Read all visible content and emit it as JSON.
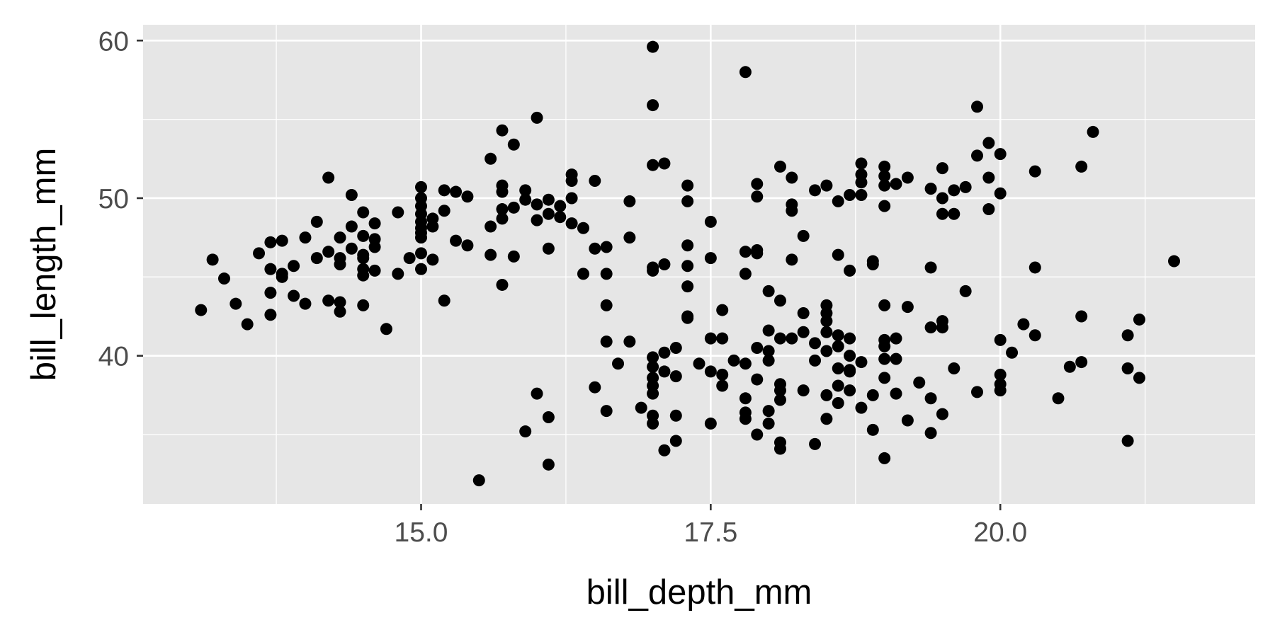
{
  "chart_data": {
    "type": "scatter",
    "title": "",
    "xlabel": "bill_depth_mm",
    "ylabel": "bill_length_mm",
    "xlim": [
      12.6,
      22.2
    ],
    "ylim": [
      30.6,
      61.0
    ],
    "x_ticks": [
      15.0,
      17.5,
      20.0
    ],
    "x_tick_labels": [
      "15.0",
      "17.5",
      "20.0"
    ],
    "x_minor_ticks": [
      13.75,
      16.25,
      18.75,
      21.25
    ],
    "y_ticks": [
      40,
      50,
      60
    ],
    "y_tick_labels": [
      "40",
      "50",
      "60"
    ],
    "y_minor_ticks": [
      35,
      45,
      55
    ],
    "grid": true,
    "legend": "none",
    "colors": {
      "panel": "#e6e6e6",
      "grid": "#ffffff",
      "point": "#000000",
      "tick_label": "#4d4d4d"
    },
    "series": [
      {
        "x": [
          13.1,
          13.2,
          13.3,
          13.4,
          13.5,
          13.6,
          13.7,
          13.7,
          13.7,
          13.7,
          13.8,
          13.8,
          13.8,
          13.9,
          13.9,
          14.0,
          14.0,
          14.1,
          14.1,
          14.2,
          14.2,
          14.2,
          14.3,
          14.3,
          14.3,
          14.3,
          14.3,
          14.4,
          14.4,
          14.4,
          14.5,
          14.5,
          14.5,
          14.5,
          14.5,
          14.5,
          14.5,
          14.6,
          14.6,
          14.6,
          14.6,
          14.7,
          14.8,
          14.8,
          14.9,
          15.0,
          15.0,
          15.0,
          15.0,
          15.0,
          15.0,
          15.0,
          15.0,
          15.0,
          15.0,
          15.1,
          15.1,
          15.1,
          15.2,
          15.2,
          15.2,
          15.3,
          15.3,
          15.4,
          15.4,
          15.5,
          15.6,
          15.6,
          15.6,
          15.7,
          15.7,
          15.7,
          15.7,
          15.7,
          15.7,
          15.8,
          15.8,
          15.8,
          15.9,
          15.9,
          15.9,
          16.0,
          16.0,
          16.0,
          16.0,
          16.1,
          16.1,
          16.1,
          16.1,
          16.1,
          16.2,
          16.2,
          16.3,
          16.3,
          16.3,
          16.3,
          16.4,
          16.4,
          16.5,
          16.5,
          16.5,
          16.6,
          16.6,
          16.6,
          16.6,
          16.6,
          16.7,
          16.8,
          16.8,
          16.8,
          16.9,
          17.0,
          17.0,
          17.0,
          17.0,
          17.0,
          17.0,
          17.0,
          17.0,
          17.0,
          17.0,
          17.0,
          17.0,
          17.1,
          17.1,
          17.1,
          17.1,
          17.1,
          17.2,
          17.2,
          17.2,
          17.2,
          17.3,
          17.3,
          17.3,
          17.3,
          17.3,
          17.3,
          17.3,
          17.4,
          17.5,
          17.5,
          17.5,
          17.5,
          17.5,
          17.6,
          17.6,
          17.6,
          17.6,
          17.7,
          17.8,
          17.8,
          17.8,
          17.8,
          17.8,
          17.8,
          17.8,
          17.9,
          17.9,
          17.9,
          17.9,
          17.9,
          17.9,
          17.9,
          18.0,
          18.0,
          18.0,
          18.0,
          18.0,
          18.0,
          18.1,
          18.1,
          18.1,
          18.1,
          18.1,
          18.1,
          18.1,
          18.1,
          18.2,
          18.2,
          18.2,
          18.2,
          18.2,
          18.3,
          18.3,
          18.3,
          18.3,
          18.4,
          18.4,
          18.4,
          18.4,
          18.5,
          18.5,
          18.5,
          18.5,
          18.5,
          18.5,
          18.5,
          18.5,
          18.6,
          18.6,
          18.6,
          18.6,
          18.6,
          18.6,
          18.6,
          18.7,
          18.7,
          18.7,
          18.7,
          18.7,
          18.7,
          18.7,
          18.8,
          18.8,
          18.8,
          18.8,
          18.8,
          18.8,
          18.9,
          18.9,
          18.9,
          18.9,
          19.0,
          19.0,
          19.0,
          19.0,
          19.0,
          19.0,
          19.0,
          19.0,
          19.0,
          19.0,
          19.1,
          19.1,
          19.1,
          19.1,
          19.2,
          19.2,
          19.2,
          19.3,
          19.4,
          19.4,
          19.4,
          19.4,
          19.4,
          19.5,
          19.5,
          19.5,
          19.5,
          19.5,
          19.5,
          19.6,
          19.6,
          19.6,
          19.7,
          19.7,
          19.8,
          19.8,
          19.8,
          19.9,
          19.9,
          19.9,
          20.0,
          20.0,
          20.0,
          20.0,
          20.0,
          20.0,
          20.1,
          20.2,
          20.3,
          20.3,
          20.3,
          20.5,
          20.6,
          20.7,
          20.7,
          20.7,
          20.8,
          21.1,
          21.1,
          21.1,
          21.2,
          21.2,
          21.5
        ],
        "y": [
          42.9,
          46.1,
          44.9,
          43.3,
          42.0,
          46.5,
          44.0,
          47.2,
          45.5,
          42.6,
          47.3,
          45.2,
          45.0,
          45.7,
          43.8,
          47.5,
          43.3,
          48.5,
          46.2,
          51.3,
          46.6,
          43.5,
          47.5,
          46.2,
          45.8,
          43.4,
          42.8,
          48.2,
          46.8,
          50.2,
          49.1,
          47.6,
          46.4,
          46.2,
          45.5,
          45.1,
          43.2,
          48.4,
          47.4,
          46.9,
          45.4,
          41.7,
          49.1,
          45.2,
          46.2,
          50.7,
          50.0,
          49.5,
          49.0,
          48.5,
          48.1,
          47.8,
          47.5,
          46.5,
          45.5,
          48.7,
          48.2,
          46.1,
          50.5,
          49.2,
          43.5,
          50.4,
          47.3,
          50.1,
          47.0,
          32.1,
          52.5,
          48.2,
          46.4,
          54.3,
          50.8,
          50.4,
          49.3,
          48.7,
          44.5,
          53.4,
          49.4,
          46.3,
          50.5,
          49.9,
          35.2,
          55.1,
          49.6,
          48.6,
          37.6,
          49.9,
          49.0,
          46.8,
          36.1,
          33.1,
          49.5,
          48.8,
          51.5,
          51.1,
          50.0,
          48.4,
          48.1,
          45.2,
          51.1,
          46.8,
          38.0,
          46.9,
          45.2,
          43.2,
          40.9,
          36.5,
          39.5,
          49.8,
          47.5,
          40.9,
          36.7,
          59.6,
          55.9,
          52.1,
          45.6,
          45.4,
          39.9,
          39.3,
          38.6,
          38.1,
          37.6,
          36.2,
          35.7,
          52.2,
          45.8,
          40.2,
          39.0,
          34.0,
          40.5,
          38.7,
          36.2,
          34.6,
          50.8,
          49.8,
          47.0,
          45.7,
          44.4,
          42.5,
          42.4,
          39.5,
          48.5,
          46.2,
          41.1,
          39.0,
          35.7,
          42.9,
          41.1,
          38.8,
          38.1,
          39.7,
          58.0,
          46.6,
          45.2,
          39.5,
          37.3,
          36.4,
          36.0,
          50.9,
          50.1,
          46.7,
          46.5,
          40.5,
          38.5,
          35.0,
          44.1,
          41.6,
          40.3,
          39.7,
          36.5,
          35.7,
          52.0,
          43.5,
          41.1,
          38.2,
          37.8,
          37.2,
          34.5,
          34.1,
          51.3,
          49.6,
          49.2,
          46.1,
          41.1,
          47.6,
          42.7,
          41.5,
          37.8,
          50.5,
          40.8,
          39.7,
          34.4,
          50.8,
          43.2,
          42.7,
          42.2,
          41.5,
          40.3,
          37.5,
          36.0,
          49.8,
          46.4,
          41.3,
          40.6,
          39.2,
          38.1,
          37.0,
          50.2,
          45.4,
          41.1,
          40.0,
          39.1,
          37.8,
          39.0,
          52.2,
          51.5,
          51.0,
          50.2,
          39.6,
          36.7,
          46.0,
          45.8,
          37.5,
          35.3,
          52.0,
          51.4,
          50.8,
          49.5,
          43.2,
          41.0,
          40.6,
          39.8,
          38.6,
          33.5,
          50.9,
          41.1,
          39.8,
          37.6,
          51.3,
          43.1,
          35.9,
          38.3,
          50.6,
          45.6,
          41.8,
          37.3,
          35.1,
          51.9,
          50.0,
          49.0,
          42.2,
          41.8,
          36.3,
          50.5,
          49.0,
          39.2,
          50.7,
          44.1,
          55.8,
          52.7,
          37.7,
          53.5,
          51.3,
          49.3,
          52.8,
          50.3,
          41.0,
          38.8,
          38.2,
          37.8,
          40.2,
          42.0,
          51.7,
          45.6,
          41.3,
          37.3,
          39.3,
          52.0,
          42.5,
          39.6,
          54.2,
          41.3,
          39.2,
          34.6,
          42.3,
          38.6,
          46.0
        ]
      }
    ]
  }
}
